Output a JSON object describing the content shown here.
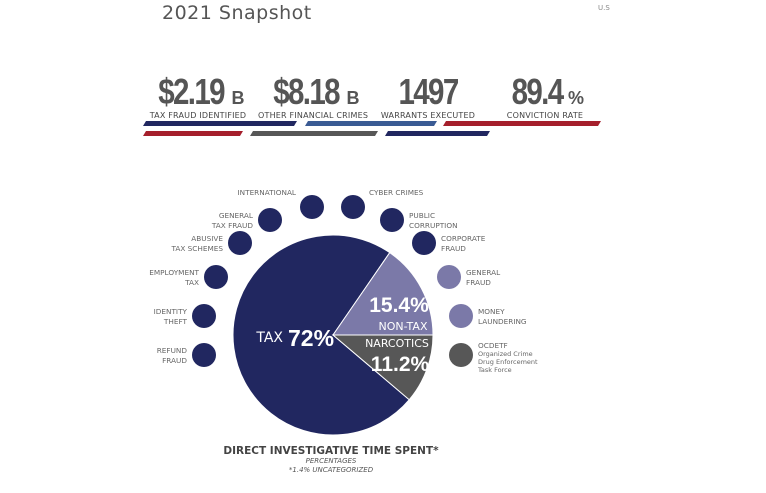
{
  "header": {
    "title": "2021 Snapshot",
    "corner_text": "U.S"
  },
  "stats": [
    {
      "value": "$2.19",
      "unit": "B",
      "label": "TAX FRAUD IDENTIFIED"
    },
    {
      "value": "$8.18",
      "unit": "B",
      "label": "OTHER FINANCIAL CRIMES"
    },
    {
      "value": "1497",
      "unit": "",
      "label": "WARRANTS EXECUTED"
    },
    {
      "value": "89.4",
      "unit": "%",
      "label": "CONVICTION RATE"
    }
  ],
  "colors": {
    "navy": "#212760",
    "blue": "#3a5b94",
    "red": "#a51f2c",
    "gray": "#575757",
    "lavender": "#7b79a8"
  },
  "chart_data": {
    "type": "pie",
    "title": "DIRECT INVESTIGATIVE TIME SPENT*",
    "subtitle": "PERCENTAGES",
    "note": "*1.4% UNCATEGORIZED",
    "slices": [
      {
        "name": "TAX",
        "value": 72,
        "label": "72%",
        "color": "#212760"
      },
      {
        "name": "NON-TAX",
        "value": 15.4,
        "label": "15.4%",
        "color": "#7b79a8"
      },
      {
        "name": "NARCOTICS",
        "value": 11.2,
        "label": "11.2%",
        "color": "#575757"
      }
    ],
    "categories": [
      {
        "lines": [
          "INTERNATIONAL"
        ],
        "group": "tax"
      },
      {
        "lines": [
          "CYBER CRIMES"
        ],
        "group": "tax"
      },
      {
        "lines": [
          "GENERAL",
          "TAX FRAUD"
        ],
        "group": "tax"
      },
      {
        "lines": [
          "PUBLIC",
          "CORRUPTION"
        ],
        "group": "tax"
      },
      {
        "lines": [
          "ABUSIVE",
          "TAX SCHEMES"
        ],
        "group": "tax"
      },
      {
        "lines": [
          "CORPORATE",
          "FRAUD"
        ],
        "group": "tax"
      },
      {
        "lines": [
          "EMPLOYMENT",
          "TAX"
        ],
        "group": "tax"
      },
      {
        "lines": [
          "GENERAL",
          "FRAUD"
        ],
        "group": "non-tax"
      },
      {
        "lines": [
          "IDENTITY",
          "THEFT"
        ],
        "group": "tax"
      },
      {
        "lines": [
          "MONEY",
          "LAUNDERING"
        ],
        "group": "non-tax"
      },
      {
        "lines": [
          "REFUND",
          "FRAUD"
        ],
        "group": "tax"
      },
      {
        "lines": [
          "OCDETF",
          "Organized Crime",
          "Drug Enforcement",
          "Task Force"
        ],
        "group": "narcotics"
      }
    ]
  }
}
